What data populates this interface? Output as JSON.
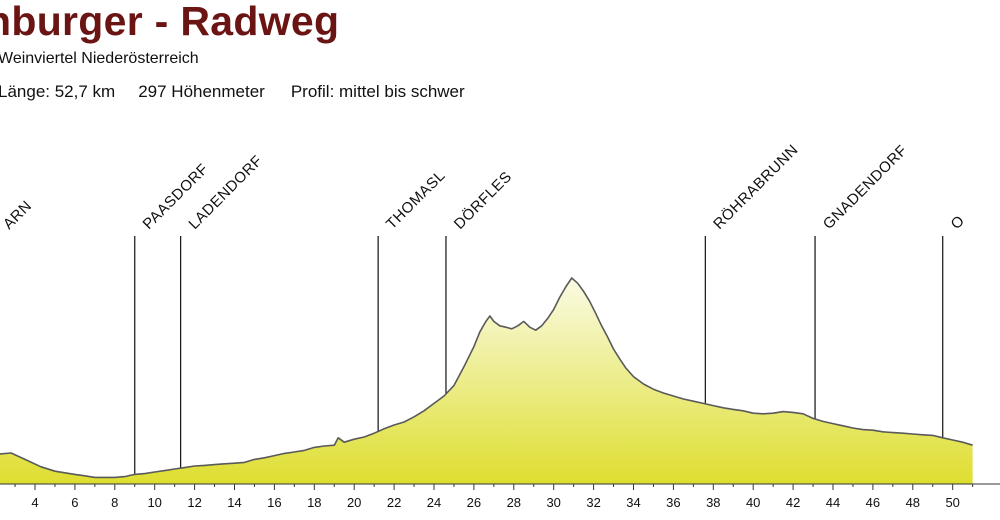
{
  "header": {
    "title": "nburger - Radweg",
    "subtitle": "Weinviertel Niederösterreich",
    "stat_length": "Länge: 52,7 km",
    "stat_elevation": "297 Höhenmeter",
    "stat_profile": "Profil: mittel bis schwer"
  },
  "chart_data": {
    "type": "area",
    "title": "nburger - Radweg",
    "xlabel": "",
    "ylabel": "",
    "xlim": [
      2.2,
      51.0
    ],
    "ylim": [
      0,
      100
    ],
    "grid": false,
    "colors": {
      "fill_top": "#fafbe4",
      "fill_bottom": "#dede30",
      "line": "#5a5a5a"
    },
    "x_ticks": [
      4,
      6,
      8,
      10,
      12,
      14,
      16,
      18,
      20,
      22,
      24,
      26,
      28,
      30,
      32,
      34,
      36,
      38,
      40,
      42,
      44,
      46,
      48,
      50
    ],
    "series": [
      {
        "x": [
          2.2,
          2.8,
          3.5,
          4.3,
          5.0,
          5.5,
          6.0,
          6.5,
          7.0,
          7.5,
          8.0,
          8.5,
          9.0,
          9.5,
          10.0,
          10.5,
          11.0,
          11.5,
          12.0,
          12.5,
          13.0,
          13.5,
          14.0,
          14.5,
          15.0,
          15.5,
          16.0,
          16.5,
          17.0,
          17.5,
          18.0,
          18.5,
          19.0,
          19.2,
          19.5,
          20.0,
          20.5,
          21.0,
          21.5,
          22.0,
          22.5,
          23.0,
          23.5,
          24.0,
          24.5,
          25.0,
          25.5,
          26.0,
          26.3,
          26.6,
          26.8,
          27.0,
          27.3,
          27.6,
          27.9,
          28.2,
          28.5,
          28.8,
          29.1,
          29.4,
          29.7,
          30.0,
          30.3,
          30.6,
          30.9,
          31.2,
          31.5,
          31.8,
          32.1,
          32.4,
          32.7,
          33.0,
          33.3,
          33.6,
          34.0,
          34.5,
          35.0,
          35.5,
          36.0,
          36.5,
          37.0,
          37.5,
          38.0,
          38.5,
          39.0,
          39.5,
          40.0,
          40.5,
          41.0,
          41.5,
          42.0,
          42.5,
          43.0,
          43.5,
          44.0,
          44.5,
          45.0,
          45.5,
          46.0,
          46.5,
          47.0,
          47.5,
          48.0,
          48.5,
          49.0,
          49.5,
          50.0,
          50.5,
          51.0
        ],
        "values": [
          15.0,
          15.5,
          12.3,
          8.6,
          6.4,
          5.6,
          4.8,
          4.1,
          3.3,
          3.3,
          3.3,
          3.7,
          4.8,
          5.2,
          6.0,
          6.7,
          7.5,
          8.2,
          9.0,
          9.3,
          9.7,
          10.1,
          10.4,
          10.8,
          12.3,
          13.1,
          14.2,
          15.3,
          16.0,
          16.8,
          18.3,
          19.0,
          19.4,
          23.1,
          20.9,
          22.4,
          23.5,
          25.4,
          27.6,
          29.5,
          31.0,
          33.6,
          36.6,
          40.3,
          44.0,
          49.2,
          58.6,
          68.7,
          76.1,
          81.3,
          84.0,
          81.3,
          79.1,
          78.4,
          77.6,
          79.1,
          81.3,
          78.4,
          76.9,
          79.1,
          82.8,
          87.3,
          93.3,
          98.5,
          103.0,
          100.4,
          96.3,
          91.4,
          85.4,
          79.1,
          73.5,
          67.5,
          62.7,
          58.2,
          53.7,
          50.0,
          47.4,
          45.5,
          44.0,
          42.5,
          41.4,
          40.3,
          39.2,
          38.1,
          37.3,
          36.6,
          35.4,
          35.1,
          35.4,
          36.2,
          35.8,
          35.1,
          32.8,
          31.3,
          30.2,
          29.1,
          28.0,
          27.2,
          26.9,
          26.1,
          25.7,
          25.4,
          25.0,
          24.6,
          24.3,
          23.1,
          22.0,
          20.9,
          19.4
        ]
      }
    ],
    "places": [
      {
        "name": "ARN",
        "km": 2.0
      },
      {
        "name": "PAASDORF",
        "km": 9.0
      },
      {
        "name": "LADENDORF",
        "km": 11.3
      },
      {
        "name": "THOMASL",
        "km": 21.2
      },
      {
        "name": "DÖRFLES",
        "km": 24.6
      },
      {
        "name": "RÖHRABRUNN",
        "km": 37.6
      },
      {
        "name": "GNADENDORF",
        "km": 43.1
      },
      {
        "name": "O",
        "km": 49.5
      }
    ]
  }
}
